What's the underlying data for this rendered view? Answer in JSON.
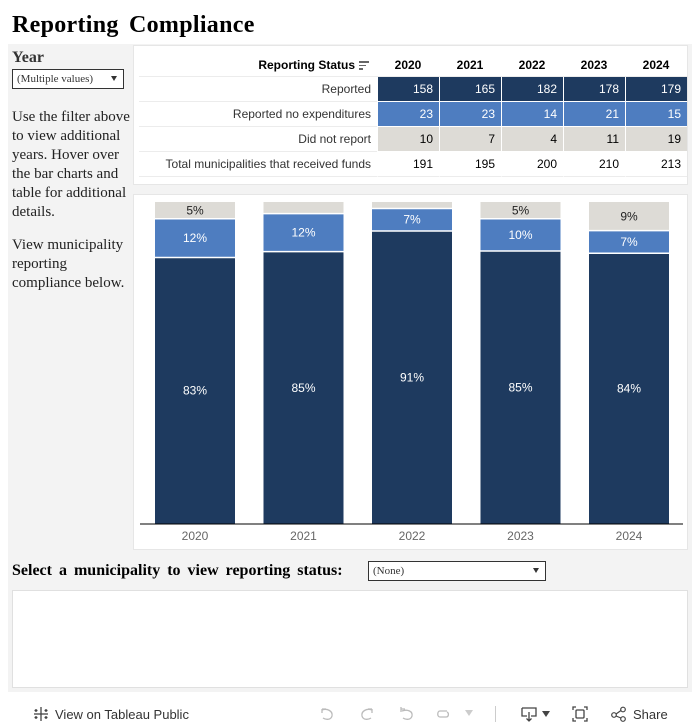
{
  "title": "Reporting Compliance",
  "filter": {
    "label": "Year",
    "selected": "(Multiple values)"
  },
  "help_text": [
    "Use the filter above to view additional years. Hover over the bar charts and table for additional details.",
    "View municipality reporting compliance below."
  ],
  "table": {
    "row_header": "Reporting Status",
    "years": [
      "2020",
      "2021",
      "2022",
      "2023",
      "2024"
    ],
    "rows": [
      {
        "label": "Reported",
        "values": [
          "158",
          "165",
          "182",
          "178",
          "179"
        ],
        "style": "reported"
      },
      {
        "label": "Reported no expenditures",
        "values": [
          "23",
          "23",
          "14",
          "21",
          "15"
        ],
        "style": "no_exp"
      },
      {
        "label": "Did not report",
        "values": [
          "10",
          "7",
          "4",
          "11",
          "19"
        ],
        "style": "not_report"
      },
      {
        "label": "Total municipalities that received funds",
        "values": [
          "191",
          "195",
          "200",
          "210",
          "213"
        ],
        "style": "total"
      }
    ]
  },
  "colors": {
    "reported": "#1e3a5f",
    "no_expenditures": "#4e7dc0",
    "did_not_report": "#dddbd6",
    "axis_text": "#666666"
  },
  "chart_data": {
    "type": "bar",
    "stacked": true,
    "normalized_percent": true,
    "title": "",
    "xlabel": "",
    "ylabel": "",
    "ylim": [
      0,
      100
    ],
    "grid": false,
    "categories": [
      "2020",
      "2021",
      "2022",
      "2023",
      "2024"
    ],
    "series": [
      {
        "name": "Reported",
        "values": [
          82.7,
          84.6,
          91.0,
          84.8,
          84.0
        ],
        "labels": [
          "83%",
          "85%",
          "91%",
          "85%",
          "84%"
        ],
        "color": "#1e3a5f",
        "label_color": "#ffffff"
      },
      {
        "name": "Reported no expenditures",
        "values": [
          12.0,
          11.8,
          7.0,
          10.0,
          7.0
        ],
        "labels": [
          "12%",
          "12%",
          "7%",
          "10%",
          "7%"
        ],
        "color": "#4e7dc0",
        "label_color": "#ffffff"
      },
      {
        "name": "Did not report",
        "values": [
          5.2,
          3.6,
          2.0,
          5.2,
          8.9
        ],
        "labels": [
          "5%",
          "",
          "",
          "5%",
          "9%"
        ],
        "color": "#dddbd6",
        "label_color": "#222222"
      }
    ]
  },
  "municipality": {
    "label": "Select a municipality to view reporting status:",
    "selected": "(None)"
  },
  "toolbar": {
    "view_on_tableau": "View on Tableau Public",
    "share": "Share"
  }
}
